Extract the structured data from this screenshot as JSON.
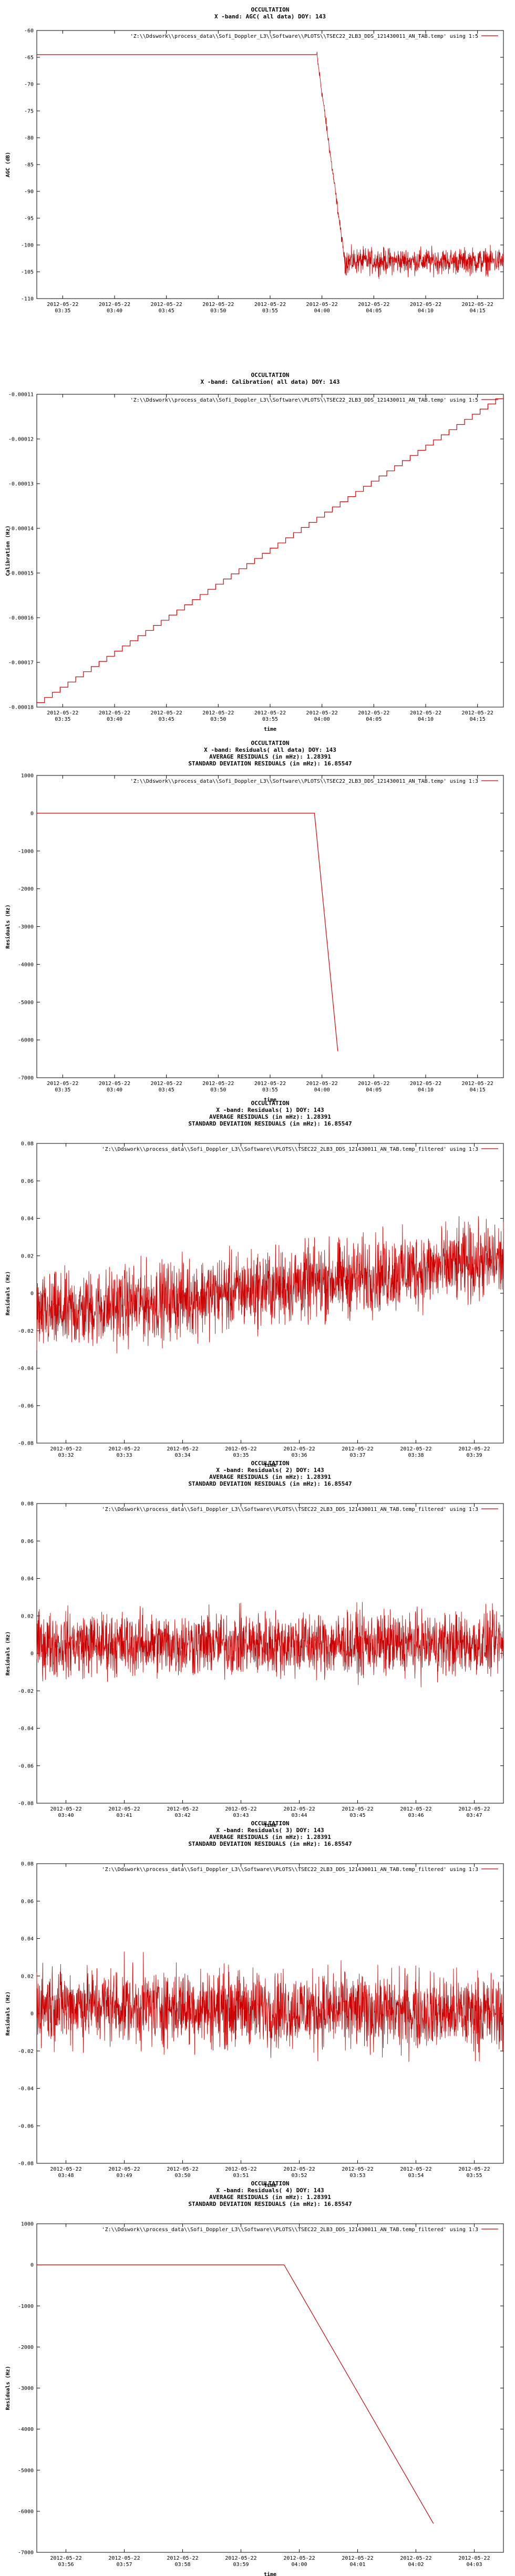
{
  "chart_data": [
    {
      "type": "line",
      "title_lines": [
        "OCCULTATION",
        "X -band: AGC( all data) DOY: 143"
      ],
      "ylabel": "AGC (dB)",
      "xlabel": "",
      "legend": "'Z:\\\\Ddswork\\\\process_data\\\\Sofi_Doppler_L3\\\\Software\\\\PLOTS\\\\TSEC22_2LB3_DDS_121430011_AN_TAB.temp' using 1:5",
      "legend_position": "top-right",
      "color": "#cc0000",
      "ylim": [
        -110,
        -60
      ],
      "yticks": [
        "-60",
        "-65",
        "-70",
        "-75",
        "-80",
        "-85",
        "-90",
        "-95",
        "-100",
        "-105",
        "-110"
      ],
      "xticks": [
        [
          "2012-05-22",
          "03:35"
        ],
        [
          "2012-05-22",
          "03:40"
        ],
        [
          "2012-05-22",
          "03:45"
        ],
        [
          "2012-05-22",
          "03:50"
        ],
        [
          "2012-05-22",
          "03:55"
        ],
        [
          "2012-05-22",
          "04:00"
        ],
        [
          "2012-05-22",
          "04:05"
        ],
        [
          "2012-05-22",
          "04:10"
        ],
        [
          "2012-05-22",
          "04:15"
        ]
      ],
      "series": [
        {
          "segments": [
            {
              "kind": "line",
              "x": [
                0.0,
                0.6
              ],
              "y": [
                -64.5,
                -64.5
              ]
            },
            {
              "kind": "noise",
              "x": [
                0.6,
                0.66
              ],
              "y_from": -64.5,
              "y_to": -103,
              "amp": 1.5
            },
            {
              "kind": "noise",
              "x": [
                0.66,
                1.0
              ],
              "y_from": -103,
              "y_to": -103,
              "amp": 3.5
            }
          ]
        }
      ]
    },
    {
      "type": "line",
      "title_lines": [
        "OCCULTATION",
        "X -band: Calibration( all data) DOY: 143"
      ],
      "ylabel": "Calibration (Hz)",
      "xlabel": "time",
      "legend": "'Z:\\\\Ddswork\\\\process_data\\\\Sofi_Doppler_L3\\\\Software\\\\PLOTS\\\\TSEC22_2LB3_DDS_121430011_AN_TAB.temp' using 1:5",
      "legend_position": "top-right",
      "color": "#cc0000",
      "ylim": [
        -0.00018,
        -0.00011
      ],
      "yticks": [
        "-0.00011",
        "-0.00012",
        "-0.00013",
        "-0.00014",
        "-0.00015",
        "-0.00016",
        "-0.00017",
        "-0.00018"
      ],
      "xticks": [
        [
          "2012-05-22",
          "03:35"
        ],
        [
          "2012-05-22",
          "03:40"
        ],
        [
          "2012-05-22",
          "03:45"
        ],
        [
          "2012-05-22",
          "03:50"
        ],
        [
          "2012-05-22",
          "03:55"
        ],
        [
          "2012-05-22",
          "04:00"
        ],
        [
          "2012-05-22",
          "04:05"
        ],
        [
          "2012-05-22",
          "04:10"
        ],
        [
          "2012-05-22",
          "04:15"
        ]
      ],
      "series": [
        {
          "segments": [
            {
              "kind": "stairs",
              "x": [
                0.0,
                1.0
              ],
              "y": [
                -0.000179,
                -0.000111
              ],
              "steps": 60
            }
          ]
        }
      ]
    },
    {
      "type": "line",
      "title_lines": [
        "OCCULTATION",
        "X -band: Residuals( all data) DOY: 143",
        "AVERAGE RESIDUALS (in mHz): 1.28391",
        "STANDARD DEVIATION RESIDUALS (in mHz): 16.85547"
      ],
      "ylabel": "Residuals (Hz)",
      "xlabel": "time",
      "legend": "'Z:\\\\Ddswork\\\\process_data\\\\Sofi_Doppler_L3\\\\Software\\\\PLOTS\\\\TSEC22_2LB3_DDS_121430011_AN_TAB.temp' using 1:3",
      "legend_position": "top-right",
      "color": "#cc0000",
      "ylim": [
        -7000,
        1000
      ],
      "yticks": [
        "1000",
        "0",
        "-1000",
        "-2000",
        "-3000",
        "-4000",
        "-5000",
        "-6000",
        "-7000"
      ],
      "xticks": [
        [
          "2012-05-22",
          "03:35"
        ],
        [
          "2012-05-22",
          "03:40"
        ],
        [
          "2012-05-22",
          "03:45"
        ],
        [
          "2012-05-22",
          "03:50"
        ],
        [
          "2012-05-22",
          "03:55"
        ],
        [
          "2012-05-22",
          "04:00"
        ],
        [
          "2012-05-22",
          "04:05"
        ],
        [
          "2012-05-22",
          "04:10"
        ],
        [
          "2012-05-22",
          "04:15"
        ]
      ],
      "series": [
        {
          "segments": [
            {
              "kind": "line",
              "x": [
                0.0,
                0.595,
                0.645
              ],
              "y": [
                0,
                0,
                -6300
              ]
            }
          ]
        }
      ]
    },
    {
      "type": "line",
      "title_lines": [
        "OCCULTATION",
        "X -band: Residuals( 1) DOY: 143",
        "AVERAGE RESIDUALS (in mHz): 1.28391",
        "STANDARD DEVIATION RESIDUALS (in mHz): 16.85547"
      ],
      "ylabel": "Residuals (Hz)",
      "xlabel": "time",
      "legend": "'Z:\\\\Ddswork\\\\process_data\\\\Sofi_Doppler_L3\\\\Software\\\\PLOTS\\\\TSEC22_2LB3_DDS_121430011_AN_TAB.temp_filtered' using 1:3",
      "legend_position": "top-right",
      "color": "#cc0000",
      "ylim": [
        -0.08,
        0.08
      ],
      "yticks": [
        "0.08",
        "0.06",
        "0.04",
        "0.02",
        "0",
        "-0.02",
        "-0.04",
        "-0.06",
        "-0.08"
      ],
      "xticks": [
        [
          "2012-05-22",
          "03:32"
        ],
        [
          "2012-05-22",
          "03:33"
        ],
        [
          "2012-05-22",
          "03:34"
        ],
        [
          "2012-05-22",
          "03:35"
        ],
        [
          "2012-05-22",
          "03:36"
        ],
        [
          "2012-05-22",
          "03:37"
        ],
        [
          "2012-05-22",
          "03:38"
        ],
        [
          "2012-05-22",
          "03:39"
        ]
      ],
      "series": [
        {
          "segments": [
            {
              "kind": "noise",
              "x": [
                0.0,
                1.0
              ],
              "y_from": -0.012,
              "y_to": 0.018,
              "amp": 0.03
            }
          ]
        }
      ]
    },
    {
      "type": "line",
      "title_lines": [
        "OCCULTATION",
        "X -band: Residuals( 2) DOY: 143",
        "AVERAGE RESIDUALS (in mHz): 1.28391",
        "STANDARD DEVIATION RESIDUALS (in mHz): 16.85547"
      ],
      "ylabel": "Residuals (Hz)",
      "xlabel": "time",
      "legend": "'Z:\\\\Ddswork\\\\process_data\\\\Sofi_Doppler_L3\\\\Software\\\\PLOTS\\\\TSEC22_2LB3_DDS_121430011_AN_TAB.temp_filtered' using 1:3",
      "legend_position": "top-right",
      "color": "#cc0000",
      "ylim": [
        -0.08,
        0.08
      ],
      "yticks": [
        "0.08",
        "0.06",
        "0.04",
        "0.02",
        "0",
        "-0.02",
        "-0.04",
        "-0.06",
        "-0.08"
      ],
      "xticks": [
        [
          "2012-05-22",
          "03:40"
        ],
        [
          "2012-05-22",
          "03:41"
        ],
        [
          "2012-05-22",
          "03:42"
        ],
        [
          "2012-05-22",
          "03:43"
        ],
        [
          "2012-05-22",
          "03:44"
        ],
        [
          "2012-05-22",
          "03:45"
        ],
        [
          "2012-05-22",
          "03:46"
        ],
        [
          "2012-05-22",
          "03:47"
        ]
      ],
      "series": [
        {
          "segments": [
            {
              "kind": "noise",
              "x": [
                0.0,
                1.0
              ],
              "y_from": 0.005,
              "y_to": 0.005,
              "amp": 0.025
            }
          ]
        }
      ]
    },
    {
      "type": "line",
      "title_lines": [
        "OCCULTATION",
        "X -band: Residuals( 3) DOY: 143",
        "AVERAGE RESIDUALS (in mHz): 1.28391",
        "STANDARD DEVIATION RESIDUALS (in mHz): 16.85547"
      ],
      "ylabel": "Residuals (Hz)",
      "xlabel": "time",
      "legend": "'Z:\\\\Ddswork\\\\process_data\\\\Sofi_Doppler_L3\\\\Software\\\\PLOTS\\\\TSEC22_2LB3_DDS_121430011_AN_TAB.temp_filtered' using 1:3",
      "legend_position": "top-right",
      "color": "#cc0000",
      "ylim": [
        -0.08,
        0.08
      ],
      "yticks": [
        "0.08",
        "0.06",
        "0.04",
        "0.02",
        "0",
        "-0.02",
        "-0.04",
        "-0.06",
        "-0.08"
      ],
      "xticks": [
        [
          "2012-05-22",
          "03:48"
        ],
        [
          "2012-05-22",
          "03:49"
        ],
        [
          "2012-05-22",
          "03:50"
        ],
        [
          "2012-05-22",
          "03:51"
        ],
        [
          "2012-05-22",
          "03:52"
        ],
        [
          "2012-05-22",
          "03:53"
        ],
        [
          "2012-05-22",
          "03:54"
        ],
        [
          "2012-05-22",
          "03:55"
        ]
      ],
      "series": [
        {
          "segments": [
            {
              "kind": "noise",
              "x": [
                0.0,
                1.0
              ],
              "y_from": 0.005,
              "y_to": 0.0,
              "amp": 0.03
            }
          ]
        }
      ]
    },
    {
      "type": "line",
      "title_lines": [
        "OCCULTATION",
        "X -band: Residuals( 4) DOY: 143",
        "AVERAGE RESIDUALS (in mHz): 1.28391",
        "STANDARD DEVIATION RESIDUALS (in mHz): 16.85547"
      ],
      "ylabel": "Residuals (Hz)",
      "xlabel": "time",
      "legend": "'Z:\\\\Ddswork\\\\process_data\\\\Sofi_Doppler_L3\\\\Software\\\\PLOTS\\\\TSEC22_2LB3_DDS_121430011_AN_TAB.temp_filtered' using 1:3",
      "legend_position": "top-right",
      "color": "#cc0000",
      "ylim": [
        -7000,
        1000
      ],
      "yticks": [
        "1000",
        "0",
        "-1000",
        "-2000",
        "-3000",
        "-4000",
        "-5000",
        "-6000",
        "-7000"
      ],
      "xticks": [
        [
          "2012-05-22",
          "03:56"
        ],
        [
          "2012-05-22",
          "03:57"
        ],
        [
          "2012-05-22",
          "03:58"
        ],
        [
          "2012-05-22",
          "03:59"
        ],
        [
          "2012-05-22",
          "04:00"
        ],
        [
          "2012-05-22",
          "04:01"
        ],
        [
          "2012-05-22",
          "04:02"
        ],
        [
          "2012-05-22",
          "04:03"
        ]
      ],
      "series": [
        {
          "segments": [
            {
              "kind": "line",
              "x": [
                0.0,
                0.53,
                0.85
              ],
              "y": [
                0,
                0,
                -6300
              ]
            }
          ]
        }
      ]
    }
  ]
}
